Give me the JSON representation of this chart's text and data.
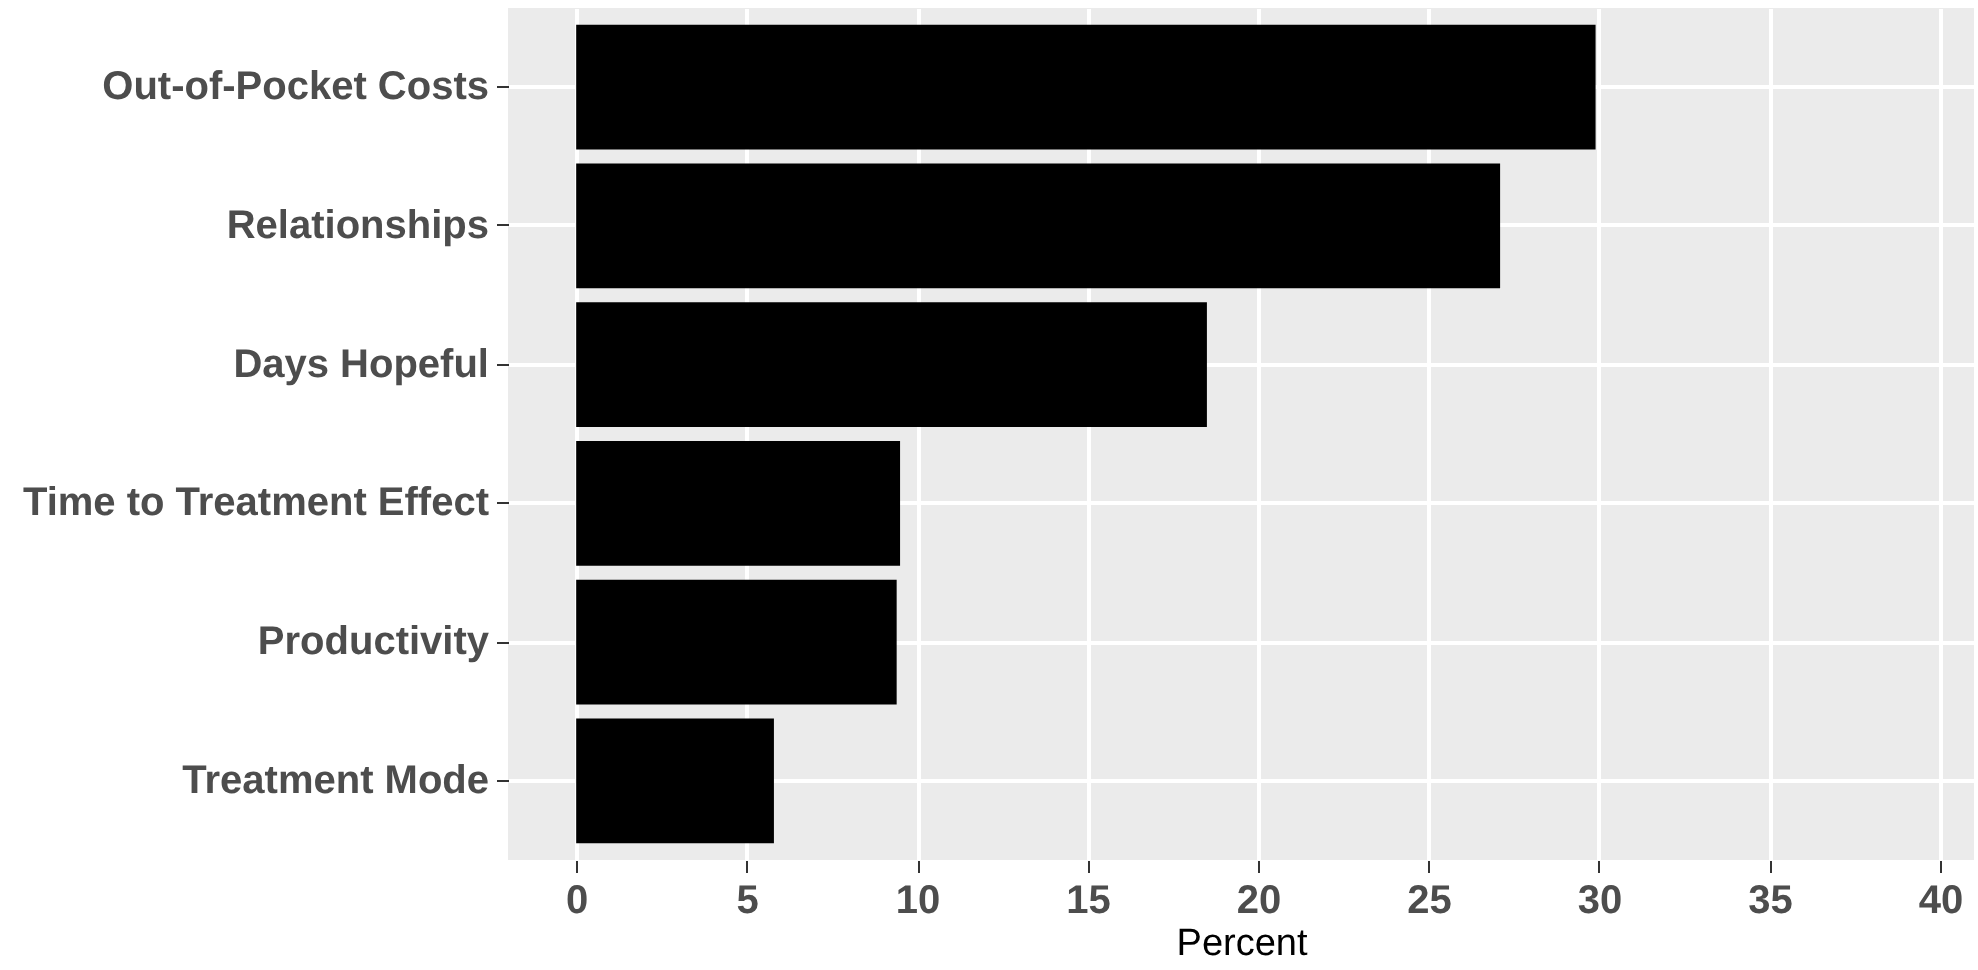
{
  "chart_data": {
    "type": "bar",
    "orientation": "horizontal",
    "xlabel": "Percent",
    "categories": [
      "Out-of-Pocket Costs",
      "Relationships",
      "Days Hopeful",
      "Time to Treatment Effect",
      "Productivity",
      "Treatment Mode"
    ],
    "values": [
      29.9,
      27.1,
      18.5,
      9.5,
      9.4,
      5.8
    ],
    "color": "#000000",
    "xlim": [
      -2,
      41
    ],
    "xticks": [
      0,
      5,
      10,
      15,
      20,
      25,
      30,
      35,
      40
    ],
    "grid": true
  }
}
